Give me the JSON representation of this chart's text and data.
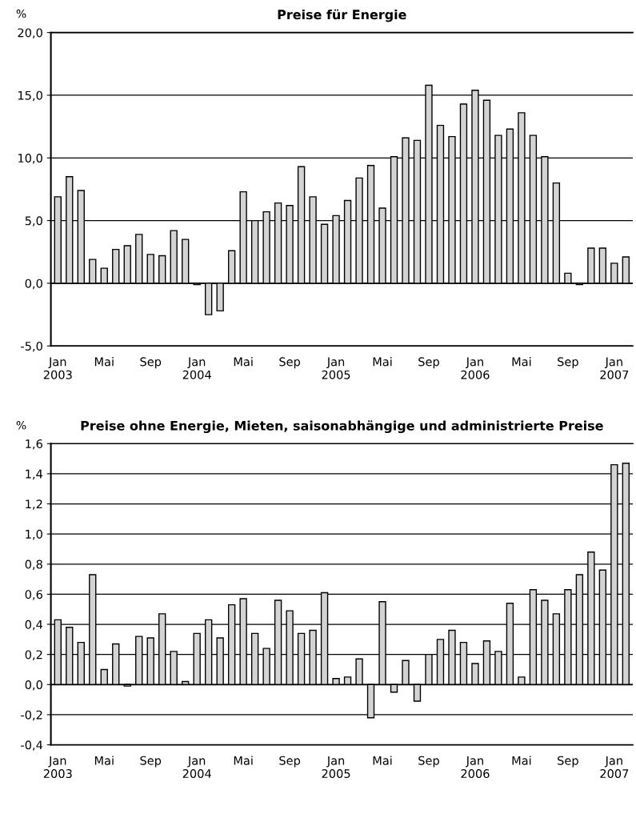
{
  "chart_data": [
    {
      "type": "bar",
      "title": "Preise für Energie",
      "ylabel": "%",
      "categories": [
        "Jan\n2003",
        null,
        null,
        null,
        "Mai",
        null,
        null,
        null,
        "Sep",
        null,
        null,
        null,
        "Jan\n2004",
        null,
        null,
        null,
        "Mai",
        null,
        null,
        null,
        "Sep",
        null,
        null,
        null,
        "Jan\n2005",
        null,
        null,
        null,
        "Mai",
        null,
        null,
        null,
        "Sep",
        null,
        null,
        null,
        "Jan\n2006",
        null,
        null,
        null,
        "Mai",
        null,
        null,
        null,
        "Sep",
        null,
        null,
        null,
        "Jan\n2007",
        null
      ],
      "series": [
        {
          "color": "#d3d3d3",
          "values": [
            6.9,
            8.5,
            7.4,
            1.9,
            1.2,
            2.7,
            3.0,
            3.9,
            2.3,
            2.2,
            4.2,
            3.5,
            -0.1,
            -2.5,
            -2.2,
            2.6,
            7.3,
            5.0,
            5.7,
            6.4,
            6.2,
            9.3,
            6.9,
            4.7,
            5.4,
            6.6,
            8.4,
            9.4,
            6.0,
            10.1,
            11.6,
            11.4,
            15.8,
            12.6,
            11.7,
            14.3,
            15.4,
            14.6,
            11.8,
            12.3,
            13.6,
            11.8,
            10.1,
            8.0,
            0.8,
            -0.1,
            2.8,
            2.8,
            1.6,
            2.1
          ]
        }
      ],
      "ylim": [
        -5,
        20
      ],
      "yticks": [
        {
          "value": -5,
          "label": "-5,0"
        },
        {
          "value": 0,
          "label": "0,0"
        },
        {
          "value": 5,
          "label": "5,0"
        },
        {
          "value": 10,
          "label": "10,0"
        },
        {
          "value": 15,
          "label": "15,0"
        },
        {
          "value": 20,
          "label": "20,0"
        }
      ],
      "grid": "y"
    },
    {
      "type": "bar",
      "title": "Preise ohne Energie, Mieten, saisonabhängige und administrierte Preise",
      "ylabel": "%",
      "categories": [
        "Jan\n2003",
        null,
        null,
        null,
        "Mai",
        null,
        null,
        null,
        "Sep",
        null,
        null,
        null,
        "Jan\n2004",
        null,
        null,
        null,
        "Mai",
        null,
        null,
        null,
        "Sep",
        null,
        null,
        null,
        "Jan\n2005",
        null,
        null,
        null,
        "Mai",
        null,
        null,
        null,
        "Sep",
        null,
        null,
        null,
        "Jan\n2006",
        null,
        null,
        null,
        "Mai",
        null,
        null,
        null,
        "Sep",
        null,
        null,
        null,
        "Jan\n2007",
        null
      ],
      "series": [
        {
          "color": "#d3d3d3",
          "values": [
            0.43,
            0.38,
            0.28,
            0.73,
            0.1,
            0.27,
            -0.01,
            0.32,
            0.31,
            0.47,
            0.22,
            0.02,
            0.34,
            0.43,
            0.31,
            0.53,
            0.57,
            0.34,
            0.24,
            0.56,
            0.49,
            0.34,
            0.36,
            0.61,
            0.04,
            0.05,
            0.17,
            -0.22,
            0.55,
            -0.05,
            0.16,
            -0.11,
            0.2,
            0.3,
            0.36,
            0.28,
            0.14,
            0.29,
            0.22,
            0.54,
            0.05,
            0.63,
            0.56,
            0.47,
            0.63,
            0.73,
            0.88,
            0.76,
            1.46,
            1.47
          ]
        }
      ],
      "ylim": [
        -0.4,
        1.6
      ],
      "yticks": [
        {
          "value": -0.4,
          "label": "-0,4"
        },
        {
          "value": -0.2,
          "label": "-0,2"
        },
        {
          "value": 0,
          "label": "0,0"
        },
        {
          "value": 0.2,
          "label": "0,2"
        },
        {
          "value": 0.4,
          "label": "0,4"
        },
        {
          "value": 0.6,
          "label": "0,6"
        },
        {
          "value": 0.8,
          "label": "0,8"
        },
        {
          "value": 1.0,
          "label": "1,0"
        },
        {
          "value": 1.2,
          "label": "1,2"
        },
        {
          "value": 1.4,
          "label": "1,4"
        },
        {
          "value": 1.6,
          "label": "1,6"
        }
      ],
      "grid": "y"
    }
  ]
}
